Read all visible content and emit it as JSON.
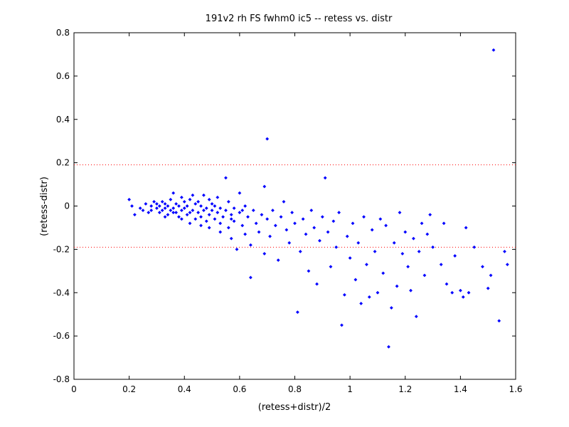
{
  "chart_data": {
    "type": "scatter",
    "title": "191v2 rh FS fwhm0 ic5 -- retess vs. distr",
    "xlabel": "(retess+distr)/2",
    "ylabel": "(retess-distr)",
    "xlim": [
      0,
      1.6
    ],
    "ylim": [
      -0.8,
      0.8
    ],
    "xticks": [
      "0",
      "0.2",
      "0.4",
      "0.6",
      "0.8",
      "1",
      "1.2",
      "1.4",
      "1.6"
    ],
    "yticks": [
      "-0.8",
      "-0.6",
      "-0.4",
      "-0.2",
      "0",
      "0.2",
      "0.4",
      "0.6",
      "0.8"
    ],
    "xtick_values": [
      0,
      0.2,
      0.4,
      0.6,
      0.8,
      1.0,
      1.2,
      1.4,
      1.6
    ],
    "ytick_values": [
      -0.8,
      -0.6,
      -0.4,
      -0.2,
      0,
      0.2,
      0.4,
      0.6,
      0.8
    ],
    "grid": false,
    "marker_color": "#0000ff",
    "reference_line_color": "#ff0000",
    "reference_lines_y": [
      0.19,
      -0.19
    ],
    "points": [
      [
        0.2,
        0.03
      ],
      [
        0.21,
        0.0
      ],
      [
        0.22,
        -0.04
      ],
      [
        0.24,
        -0.01
      ],
      [
        0.25,
        -0.02
      ],
      [
        0.26,
        0.01
      ],
      [
        0.27,
        -0.03
      ],
      [
        0.28,
        0.0
      ],
      [
        0.28,
        -0.02
      ],
      [
        0.29,
        0.02
      ],
      [
        0.3,
        -0.01
      ],
      [
        0.3,
        0.01
      ],
      [
        0.31,
        -0.03
      ],
      [
        0.31,
        0.0
      ],
      [
        0.32,
        -0.02
      ],
      [
        0.32,
        0.02
      ],
      [
        0.33,
        -0.01
      ],
      [
        0.33,
        0.01
      ],
      [
        0.34,
        -0.04
      ],
      [
        0.34,
        0.0
      ],
      [
        0.35,
        -0.02
      ],
      [
        0.35,
        0.03
      ],
      [
        0.36,
        -0.01
      ],
      [
        0.36,
        0.06
      ],
      [
        0.37,
        -0.03
      ],
      [
        0.37,
        0.01
      ],
      [
        0.38,
        -0.05
      ],
      [
        0.38,
        0.0
      ],
      [
        0.39,
        -0.02
      ],
      [
        0.39,
        0.04
      ],
      [
        0.4,
        -0.01
      ],
      [
        0.4,
        0.02
      ],
      [
        0.41,
        -0.04
      ],
      [
        0.41,
        0.0
      ],
      [
        0.42,
        -0.03
      ],
      [
        0.42,
        0.03
      ],
      [
        0.43,
        -0.02
      ],
      [
        0.43,
        0.05
      ],
      [
        0.44,
        -0.06
      ],
      [
        0.44,
        0.01
      ],
      [
        0.45,
        -0.03
      ],
      [
        0.45,
        0.02
      ],
      [
        0.46,
        -0.05
      ],
      [
        0.46,
        0.0
      ],
      [
        0.47,
        -0.02
      ],
      [
        0.47,
        0.05
      ],
      [
        0.48,
        -0.07
      ],
      [
        0.48,
        -0.01
      ],
      [
        0.49,
        -0.04
      ],
      [
        0.49,
        0.03
      ],
      [
        0.5,
        -0.02
      ],
      [
        0.5,
        0.01
      ],
      [
        0.51,
        -0.06
      ],
      [
        0.51,
        0.0
      ],
      [
        0.52,
        -0.03
      ],
      [
        0.52,
        0.04
      ],
      [
        0.53,
        -0.08
      ],
      [
        0.53,
        -0.01
      ],
      [
        0.54,
        -0.05
      ],
      [
        0.55,
        0.13
      ],
      [
        0.55,
        -0.02
      ],
      [
        0.56,
        -0.1
      ],
      [
        0.56,
        0.02
      ],
      [
        0.57,
        -0.04
      ],
      [
        0.57,
        -0.15
      ],
      [
        0.58,
        -0.01
      ],
      [
        0.58,
        -0.07
      ],
      [
        0.59,
        -0.2
      ],
      [
        0.6,
        -0.03
      ],
      [
        0.6,
        0.06
      ],
      [
        0.61,
        -0.09
      ],
      [
        0.62,
        -0.13
      ],
      [
        0.62,
        0.0
      ],
      [
        0.63,
        -0.05
      ],
      [
        0.64,
        -0.33
      ],
      [
        0.64,
        -0.18
      ],
      [
        0.65,
        -0.02
      ],
      [
        0.66,
        -0.08
      ],
      [
        0.67,
        -0.12
      ],
      [
        0.68,
        -0.04
      ],
      [
        0.69,
        0.09
      ],
      [
        0.69,
        -0.22
      ],
      [
        0.7,
        0.31
      ],
      [
        0.7,
        -0.06
      ],
      [
        0.71,
        -0.14
      ],
      [
        0.72,
        -0.02
      ],
      [
        0.73,
        -0.09
      ],
      [
        0.74,
        -0.25
      ],
      [
        0.75,
        -0.05
      ],
      [
        0.76,
        0.02
      ],
      [
        0.77,
        -0.11
      ],
      [
        0.78,
        -0.17
      ],
      [
        0.79,
        -0.03
      ],
      [
        0.8,
        -0.08
      ],
      [
        0.81,
        -0.49
      ],
      [
        0.82,
        -0.21
      ],
      [
        0.83,
        -0.06
      ],
      [
        0.84,
        -0.13
      ],
      [
        0.85,
        -0.3
      ],
      [
        0.86,
        -0.02
      ],
      [
        0.87,
        -0.1
      ],
      [
        0.88,
        -0.36
      ],
      [
        0.89,
        -0.16
      ],
      [
        0.9,
        -0.05
      ],
      [
        0.91,
        0.13
      ],
      [
        0.92,
        -0.12
      ],
      [
        0.93,
        -0.28
      ],
      [
        0.94,
        -0.07
      ],
      [
        0.95,
        -0.19
      ],
      [
        0.96,
        -0.03
      ],
      [
        0.97,
        -0.55
      ],
      [
        0.98,
        -0.41
      ],
      [
        0.99,
        -0.14
      ],
      [
        1.0,
        -0.24
      ],
      [
        1.01,
        -0.08
      ],
      [
        1.02,
        -0.34
      ],
      [
        1.03,
        -0.17
      ],
      [
        1.04,
        -0.45
      ],
      [
        1.05,
        -0.05
      ],
      [
        1.06,
        -0.27
      ],
      [
        1.07,
        -0.42
      ],
      [
        1.08,
        -0.11
      ],
      [
        1.09,
        -0.21
      ],
      [
        1.1,
        -0.4
      ],
      [
        1.11,
        -0.06
      ],
      [
        1.12,
        -0.31
      ],
      [
        1.13,
        -0.09
      ],
      [
        1.14,
        -0.65
      ],
      [
        1.15,
        -0.47
      ],
      [
        1.16,
        -0.17
      ],
      [
        1.17,
        -0.37
      ],
      [
        1.18,
        -0.03
      ],
      [
        1.19,
        -0.22
      ],
      [
        1.2,
        -0.12
      ],
      [
        1.21,
        -0.28
      ],
      [
        1.22,
        -0.39
      ],
      [
        1.23,
        -0.15
      ],
      [
        1.24,
        -0.51
      ],
      [
        1.25,
        -0.21
      ],
      [
        1.26,
        -0.08
      ],
      [
        1.27,
        -0.32
      ],
      [
        1.28,
        -0.13
      ],
      [
        1.29,
        -0.04
      ],
      [
        1.3,
        -0.19
      ],
      [
        1.33,
        -0.27
      ],
      [
        1.34,
        -0.08
      ],
      [
        1.35,
        -0.36
      ],
      [
        1.37,
        -0.4
      ],
      [
        1.38,
        -0.23
      ],
      [
        1.4,
        -0.39
      ],
      [
        1.41,
        -0.42
      ],
      [
        1.42,
        -0.1
      ],
      [
        1.43,
        -0.4
      ],
      [
        1.45,
        -0.19
      ],
      [
        1.48,
        -0.28
      ],
      [
        1.5,
        -0.38
      ],
      [
        1.51,
        -0.32
      ],
      [
        1.52,
        0.72
      ],
      [
        1.54,
        -0.53
      ],
      [
        1.56,
        -0.21
      ],
      [
        1.57,
        -0.27
      ],
      [
        0.33,
        -0.05
      ],
      [
        0.36,
        -0.03
      ],
      [
        0.39,
        -0.06
      ],
      [
        0.42,
        -0.08
      ],
      [
        0.46,
        -0.09
      ],
      [
        0.49,
        -0.1
      ],
      [
        0.53,
        -0.12
      ],
      [
        0.57,
        -0.06
      ],
      [
        0.61,
        -0.02
      ]
    ]
  }
}
